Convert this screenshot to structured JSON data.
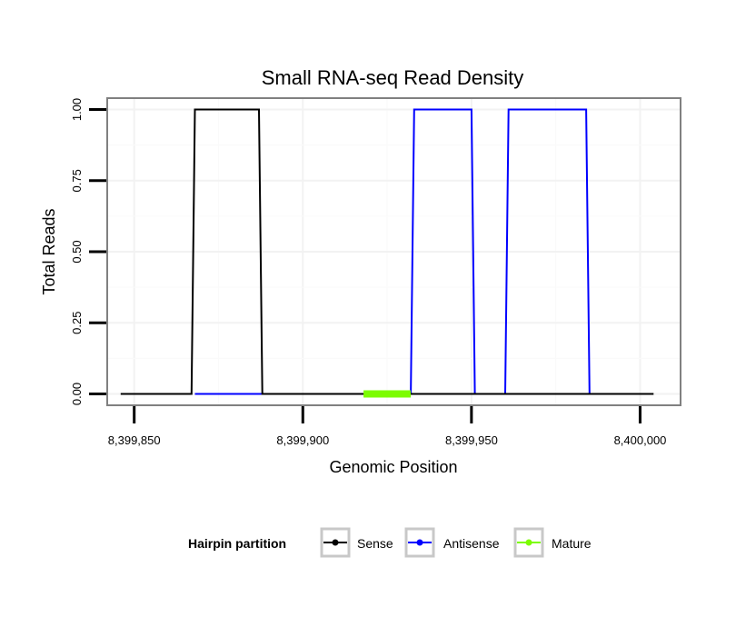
{
  "chart_data": {
    "type": "line",
    "title": "Small RNA-seq Read Density",
    "xlabel": "Genomic Position",
    "ylabel": "Total Reads",
    "xlim": [
      8399842,
      8400012
    ],
    "ylim": [
      -0.04,
      1.04
    ],
    "x_ticks": [
      8399850,
      8399900,
      8399950,
      8400000
    ],
    "x_tick_labels": [
      "8,399,850",
      "8,399,900",
      "8,399,950",
      "8,400,000"
    ],
    "y_ticks": [
      0,
      0.25,
      0.5,
      0.75,
      1.0
    ],
    "y_tick_labels": [
      "0.00",
      "0.25",
      "0.50",
      "0.75",
      "1.00"
    ],
    "grid": true,
    "legend": {
      "title": "Hairpin partition",
      "position": "bottom",
      "entries": [
        "Sense",
        "Antisense",
        "Mature"
      ]
    },
    "series": [
      {
        "name": "Sense",
        "color": "#000000",
        "points": [
          [
            8399846,
            0
          ],
          [
            8399867,
            0
          ],
          [
            8399868,
            1
          ],
          [
            8399887,
            1
          ],
          [
            8399888,
            0
          ],
          [
            8400004,
            0
          ]
        ]
      },
      {
        "name": "Antisense",
        "color": "#0000ff",
        "points": [
          [
            8399868,
            0
          ],
          [
            8399887,
            0
          ],
          [
            8399932,
            0
          ],
          [
            8399933,
            1
          ],
          [
            8399950,
            1
          ],
          [
            8399951,
            0
          ],
          [
            8399960,
            0
          ],
          [
            8399961,
            1
          ],
          [
            8399984,
            1
          ],
          [
            8399985,
            0
          ]
        ]
      },
      {
        "name": "Mature",
        "color": "#7cfc00",
        "points": [
          [
            8399918,
            0
          ],
          [
            8399932,
            0
          ]
        ]
      }
    ]
  }
}
